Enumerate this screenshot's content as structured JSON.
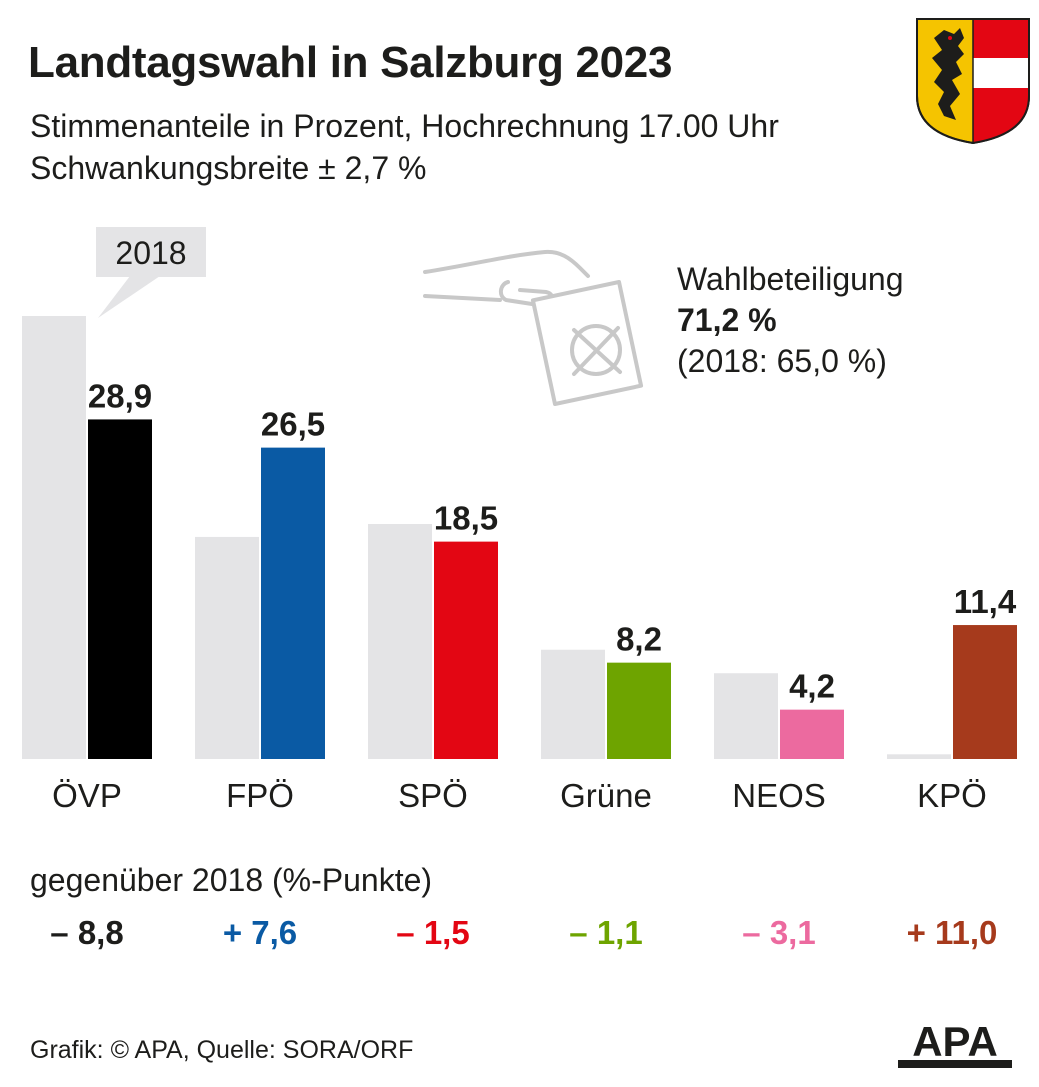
{
  "title": "Landtagswahl in Salzburg 2023",
  "subtitle_line1": "Stimmenanteile in Prozent, Hochrechnung 17.00 Uhr",
  "subtitle_line2": "Schwankungsbreite ± 2,7 %",
  "callout_2018": "2018",
  "turnout": {
    "label": "Wahlbeteiligung",
    "value": "71,2 %",
    "previous": "(2018: 65,0  %)"
  },
  "change_heading": "gegenüber 2018 (%-Punkte)",
  "footer": "Grafik: © APA, Quelle: SORA/ORF",
  "logo_text": "APA",
  "colors": {
    "background": "#ffffff",
    "bar_2018": "#e4e4e6",
    "text": "#1d1d1b",
    "crest_red": "#e30613",
    "crest_gold": "#f5c400"
  },
  "icons": [
    "ballot-hand-icon",
    "salzburg-crest-icon",
    "apa-logo"
  ],
  "chart_data": {
    "type": "bar",
    "categories": [
      "ÖVP",
      "FPÖ",
      "SPÖ",
      "Grüne",
      "NEOS",
      "KPÖ"
    ],
    "series": [
      {
        "name": "2018",
        "values": [
          37.7,
          18.9,
          20.0,
          9.3,
          7.3,
          0.4
        ],
        "color": "#e4e4e6"
      },
      {
        "name": "",
        "values": [
          28.9,
          26.5,
          18.5,
          8.2,
          4.2,
          11.4
        ],
        "labels": [
          "28,9",
          "26,5",
          "18,5",
          "8,2",
          "4,2",
          "11,4"
        ],
        "colors": [
          "#000000",
          "#0a5aa4",
          "#e30613",
          "#6ea400",
          "#ec6a9f",
          "#a63a1c"
        ]
      }
    ],
    "changes": [
      {
        "label": "– 8,8",
        "value": -8.8,
        "color": "#1d1d1b"
      },
      {
        "label": "+ 7,6",
        "value": 7.6,
        "color": "#0a5aa4"
      },
      {
        "label": "– 1,5",
        "value": -1.5,
        "color": "#e30613"
      },
      {
        "label": "– 1,1",
        "value": -1.1,
        "color": "#6ea400"
      },
      {
        "label": "– 3,1",
        "value": -3.1,
        "color": "#ec6a9f"
      },
      {
        "label": "+ 11,0",
        "value": 11.0,
        "color": "#a63a1c"
      }
    ],
    "ylim": [
      0,
      38
    ],
    "grid": false,
    "legend": "callout-top-left"
  }
}
